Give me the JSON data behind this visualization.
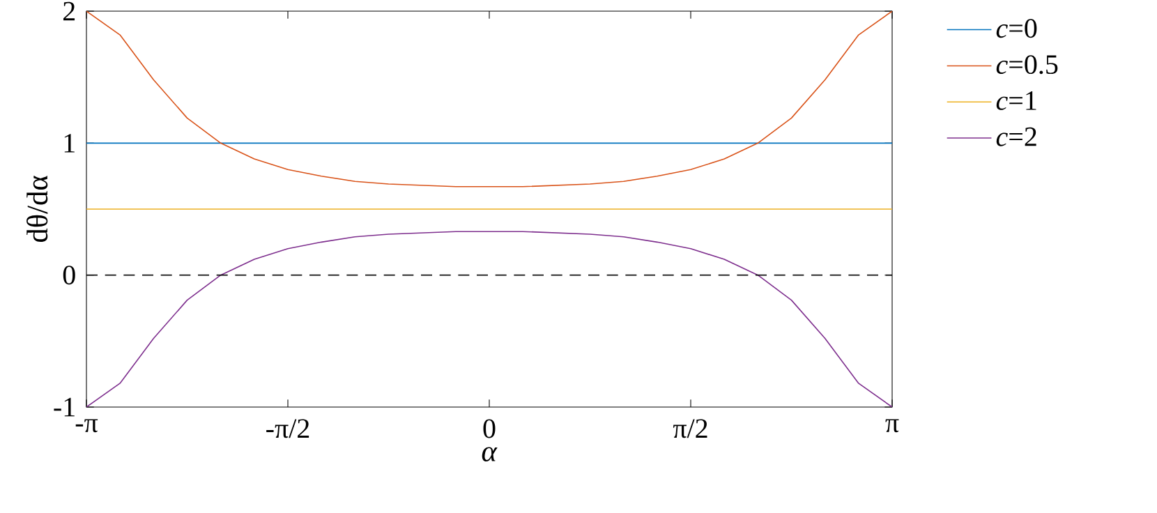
{
  "chart_data": {
    "type": "line",
    "xlabel": "*α*",
    "ylabel": "dθ/dα",
    "x": [
      -3.1416,
      -2.8798,
      -2.618,
      -2.3562,
      -2.0944,
      -1.8326,
      -1.5708,
      -1.309,
      -1.0472,
      -0.7854,
      -0.5236,
      -0.2618,
      0,
      0.2618,
      0.5236,
      0.7854,
      1.0472,
      1.309,
      1.5708,
      1.8326,
      2.0944,
      2.3562,
      2.618,
      2.8798,
      3.1416
    ],
    "series": [
      {
        "name": "*c*=0",
        "color": "#0072bd",
        "values": [
          1,
          1,
          1,
          1,
          1,
          1,
          1,
          1,
          1,
          1,
          1,
          1,
          1,
          1,
          1,
          1,
          1,
          1,
          1,
          1,
          1,
          1,
          1,
          1,
          1
        ]
      },
      {
        "name": "*c*=0.5",
        "color": "#d95319",
        "values": [
          2,
          1.82,
          1.48,
          1.19,
          1.0,
          0.88,
          0.8,
          0.75,
          0.71,
          0.69,
          0.68,
          0.67,
          0.67,
          0.67,
          0.68,
          0.69,
          0.71,
          0.75,
          0.8,
          0.88,
          1.0,
          1.19,
          1.48,
          1.82,
          2
        ]
      },
      {
        "name": "*c*=1",
        "color": "#edb120",
        "values": [
          0.5,
          0.5,
          0.5,
          0.5,
          0.5,
          0.5,
          0.5,
          0.5,
          0.5,
          0.5,
          0.5,
          0.5,
          0.5,
          0.5,
          0.5,
          0.5,
          0.5,
          0.5,
          0.5,
          0.5,
          0.5,
          0.5,
          0.5,
          0.5,
          0.5
        ]
      },
      {
        "name": "*c*=2",
        "color": "#7e2f8e",
        "values": [
          -1,
          -0.82,
          -0.48,
          -0.19,
          0,
          0.12,
          0.2,
          0.25,
          0.29,
          0.31,
          0.32,
          0.33,
          0.33,
          0.33,
          0.32,
          0.31,
          0.29,
          0.25,
          0.2,
          0.12,
          0,
          -0.19,
          -0.48,
          -0.82,
          -1
        ]
      }
    ],
    "xlim": [
      -3.1416,
      3.1416
    ],
    "xticks": [
      {
        "value": -3.1416,
        "label": "-π"
      },
      {
        "value": -1.5708,
        "label": "-π/2"
      },
      0,
      {
        "value": 1.5708,
        "label": "π/2"
      },
      {
        "value": 3.1416,
        "label": "π"
      }
    ],
    "ylim": [
      -1,
      2
    ],
    "yticks": [
      -1,
      0,
      1,
      2
    ],
    "ref_lines": [
      {
        "axis": "y",
        "value": 0,
        "color": "#000000",
        "line_style": "dashed"
      }
    ],
    "legend": "right",
    "marker": "none",
    "line_style": "solid"
  }
}
